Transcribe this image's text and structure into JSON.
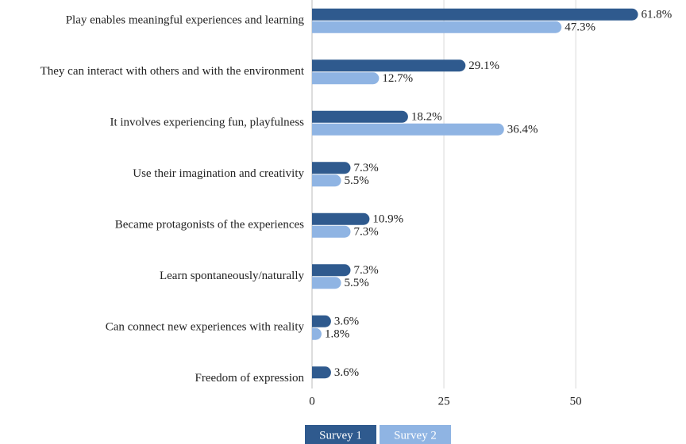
{
  "chart_data": {
    "type": "bar",
    "orientation": "horizontal",
    "categories": [
      "Play enables meaningful experiences and learning",
      "They can interact with others and with the environment",
      "It involves experiencing fun, playfulness",
      "Use their imagination and creativity",
      "Became protagonists of the experiences",
      "Learn spontaneously/naturally",
      "Can connect new experiences with reality",
      "Freedom of expression"
    ],
    "series": [
      {
        "name": "Survey 1",
        "color": "#2f5a8e",
        "values": [
          61.8,
          29.1,
          18.2,
          7.3,
          10.9,
          7.3,
          3.6,
          3.6
        ],
        "value_labels": [
          "61.8%",
          "29.1%",
          "18.2%",
          "7.3%",
          "10.9%",
          "7.3%",
          "3.6%",
          "3.6%"
        ]
      },
      {
        "name": "Survey 2",
        "color": "#8fb4e3",
        "values": [
          47.3,
          12.7,
          36.4,
          5.5,
          7.3,
          5.5,
          1.8,
          null
        ],
        "value_labels": [
          "47.3%",
          "12.7%",
          "36.4%",
          "5.5%",
          "7.3%",
          "5.5%",
          "1.8%",
          null
        ]
      }
    ],
    "xlim": [
      0,
      70
    ],
    "xticks": [
      0,
      25,
      50
    ],
    "grid": true
  }
}
